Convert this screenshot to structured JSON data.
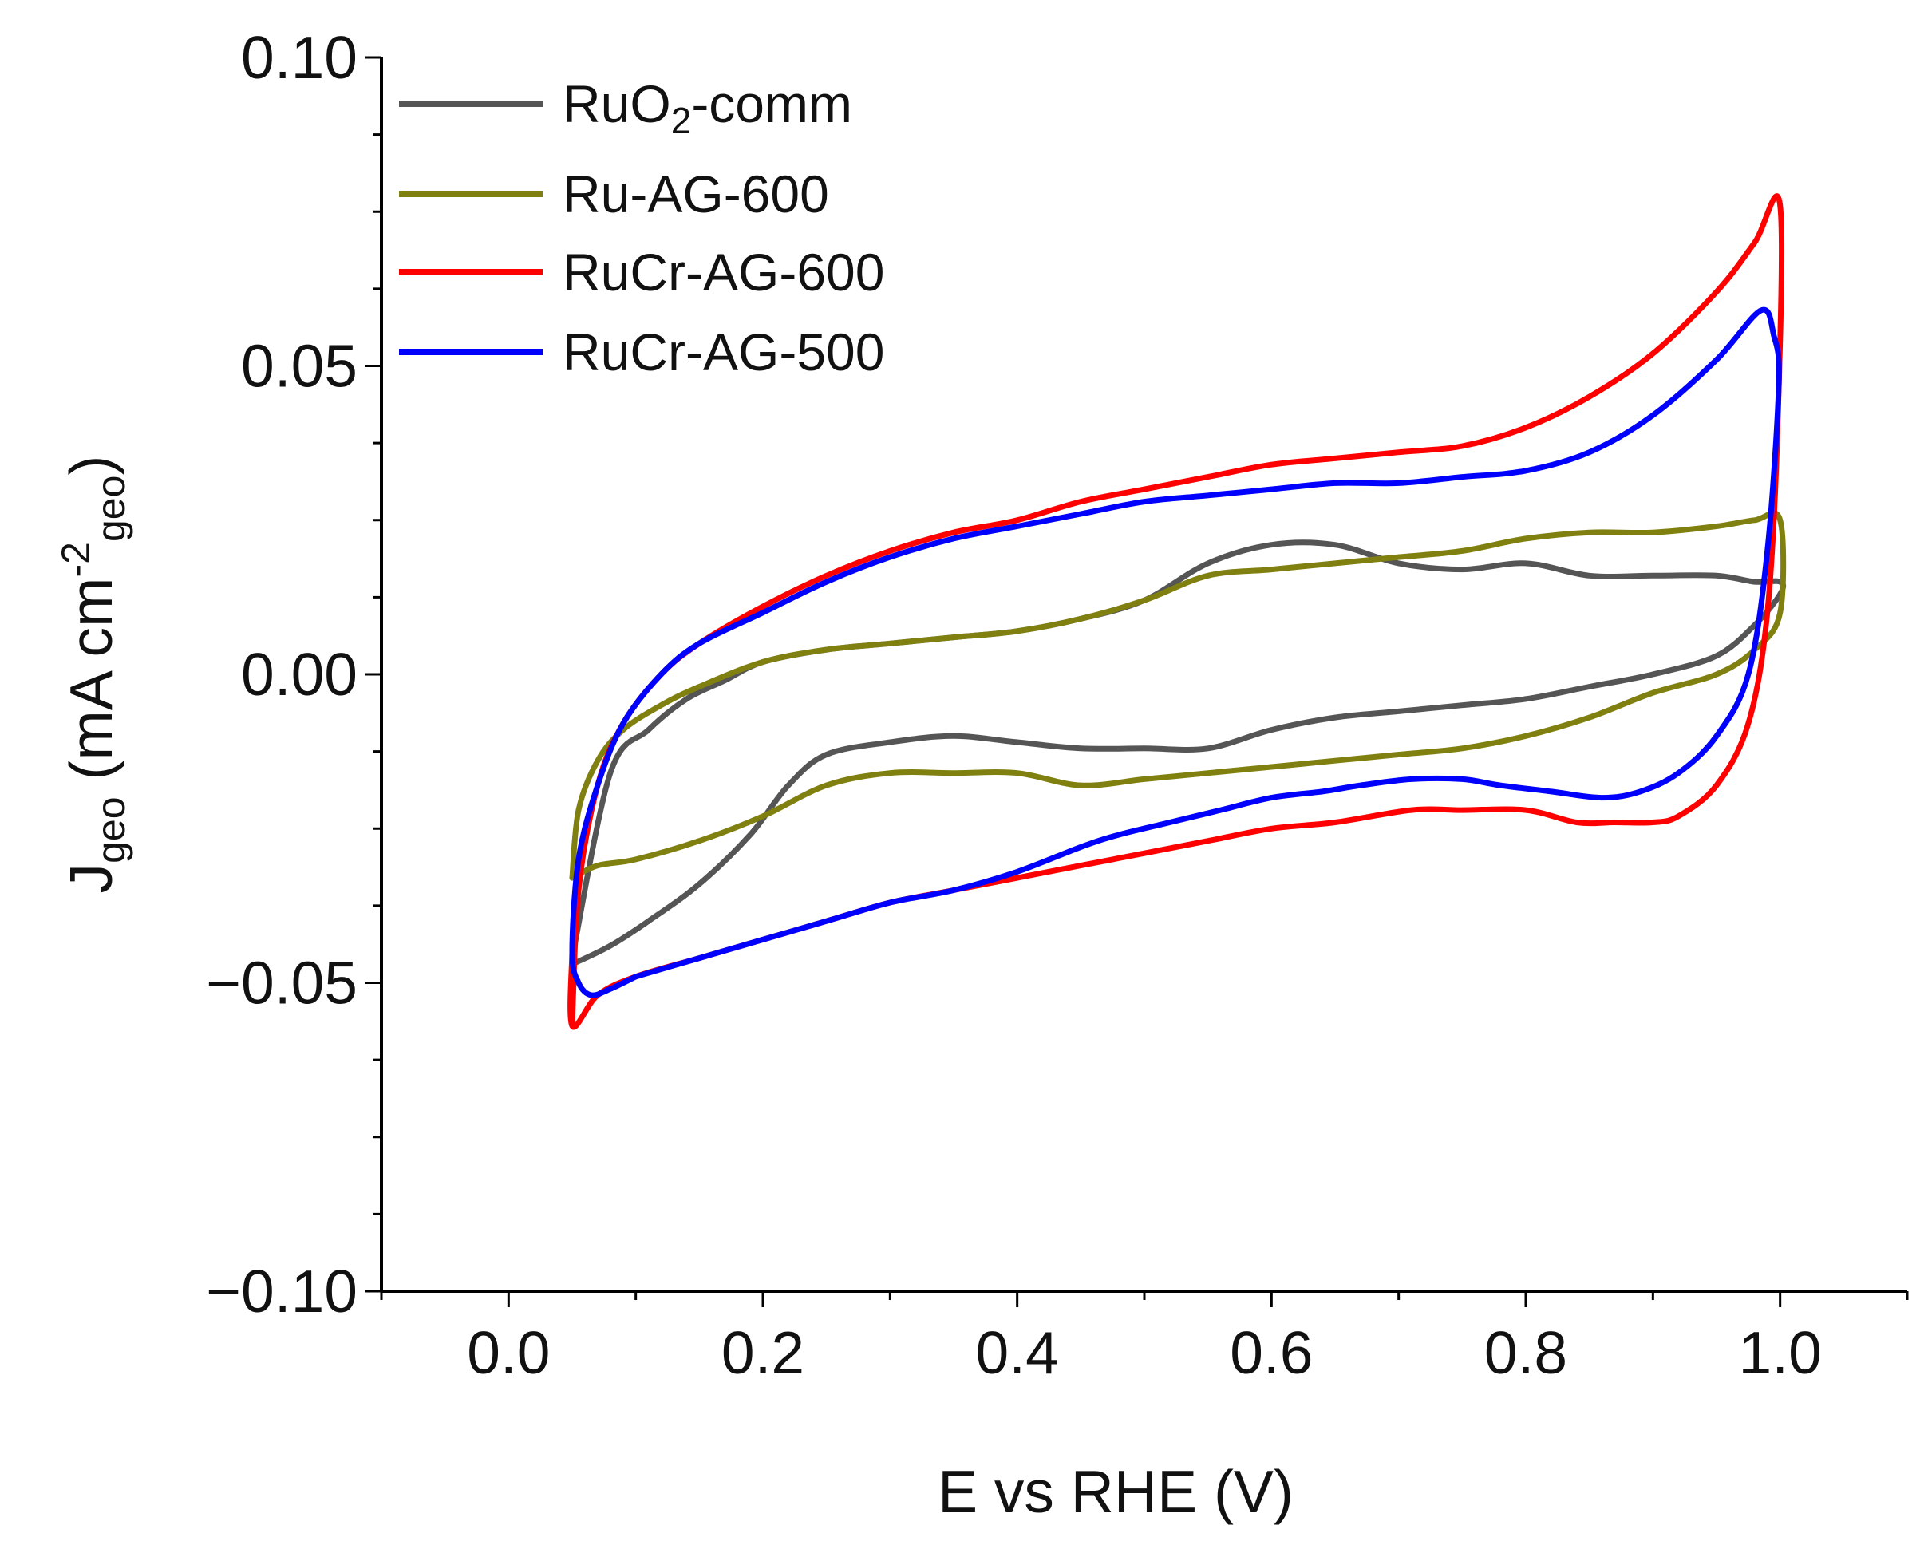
{
  "chart_data": {
    "type": "line",
    "title": "",
    "xlabel": "E vs RHE (V)",
    "ylabel": {
      "main": "J",
      "sub": "geo",
      "mid": " (mA cm",
      "sup": "-2",
      "sub2": "geo",
      "end": ")"
    },
    "xlim": [
      -0.1,
      1.1
    ],
    "ylim": [
      -0.1,
      0.1
    ],
    "xticks": [
      0.0,
      0.2,
      0.4,
      0.6,
      0.8,
      1.0
    ],
    "xtick_labels": [
      "0.0",
      "0.2",
      "0.4",
      "0.6",
      "0.8",
      "1.0"
    ],
    "yticks": [
      -0.1,
      -0.05,
      0.0,
      0.05,
      0.1
    ],
    "ytick_labels": [
      "−0.10",
      "−0.05",
      "0.00",
      "0.05",
      "0.10"
    ],
    "legend_position": "top-left",
    "series": [
      {
        "name": "RuO2-comm",
        "label_main": "RuO",
        "label_sub": "2",
        "label_rest": "-comm",
        "color": "#555555",
        "x": [
          0.05,
          0.08,
          0.11,
          0.14,
          0.17,
          0.2,
          0.25,
          0.3,
          0.35,
          0.4,
          0.45,
          0.5,
          0.55,
          0.6,
          0.65,
          0.7,
          0.75,
          0.8,
          0.85,
          0.9,
          0.95,
          0.98,
          1.0,
          1.0,
          0.98,
          0.95,
          0.9,
          0.85,
          0.8,
          0.75,
          0.7,
          0.65,
          0.6,
          0.55,
          0.5,
          0.45,
          0.4,
          0.35,
          0.3,
          0.25,
          0.22,
          0.19,
          0.15,
          0.11,
          0.08,
          0.05
        ],
        "y": [
          -0.046,
          -0.016,
          -0.009,
          -0.004,
          -0.001,
          0.002,
          0.004,
          0.005,
          0.006,
          0.007,
          0.009,
          0.012,
          0.018,
          0.021,
          0.021,
          0.018,
          0.017,
          0.018,
          0.016,
          0.016,
          0.016,
          0.015,
          0.015,
          0.013,
          0.008,
          0.003,
          0.0,
          -0.002,
          -0.004,
          -0.005,
          -0.006,
          -0.007,
          -0.009,
          -0.012,
          -0.012,
          -0.012,
          -0.011,
          -0.01,
          -0.011,
          -0.013,
          -0.018,
          -0.026,
          -0.034,
          -0.04,
          -0.044,
          -0.047
        ]
      },
      {
        "name": "Ru-AG-600",
        "label_main": "Ru-AG-600",
        "label_sub": "",
        "label_rest": "",
        "color": "#808010",
        "x": [
          0.05,
          0.055,
          0.07,
          0.09,
          0.12,
          0.15,
          0.2,
          0.25,
          0.3,
          0.35,
          0.4,
          0.45,
          0.5,
          0.55,
          0.6,
          0.65,
          0.7,
          0.75,
          0.8,
          0.85,
          0.9,
          0.95,
          0.98,
          1.0,
          1.0,
          0.98,
          0.95,
          0.9,
          0.85,
          0.8,
          0.75,
          0.7,
          0.65,
          0.6,
          0.55,
          0.5,
          0.45,
          0.4,
          0.35,
          0.3,
          0.25,
          0.2,
          0.15,
          0.1,
          0.07,
          0.05
        ],
        "y": [
          -0.033,
          -0.022,
          -0.014,
          -0.009,
          -0.005,
          -0.002,
          0.002,
          0.004,
          0.005,
          0.006,
          0.007,
          0.009,
          0.012,
          0.016,
          0.017,
          0.018,
          0.019,
          0.02,
          0.022,
          0.023,
          0.023,
          0.024,
          0.025,
          0.025,
          0.01,
          0.004,
          0.0,
          -0.003,
          -0.007,
          -0.01,
          -0.012,
          -0.013,
          -0.014,
          -0.015,
          -0.016,
          -0.017,
          -0.018,
          -0.016,
          -0.016,
          -0.016,
          -0.018,
          -0.023,
          -0.027,
          -0.03,
          -0.031,
          -0.033
        ]
      },
      {
        "name": "RuCr-AG-600",
        "label_main": "RuCr-AG-600",
        "label_sub": "",
        "label_rest": "",
        "color": "#ff0000",
        "x": [
          0.05,
          0.055,
          0.07,
          0.09,
          0.12,
          0.15,
          0.2,
          0.25,
          0.3,
          0.35,
          0.4,
          0.45,
          0.5,
          0.55,
          0.6,
          0.65,
          0.7,
          0.75,
          0.8,
          0.85,
          0.9,
          0.95,
          0.98,
          1.0,
          0.998,
          0.99,
          0.975,
          0.95,
          0.92,
          0.9,
          0.87,
          0.84,
          0.8,
          0.75,
          0.71,
          0.65,
          0.6,
          0.55,
          0.5,
          0.45,
          0.4,
          0.35,
          0.3,
          0.25,
          0.2,
          0.15,
          0.1,
          0.07,
          0.05,
          0.05
        ],
        "y": [
          -0.057,
          -0.035,
          -0.018,
          -0.008,
          0.0,
          0.005,
          0.011,
          0.016,
          0.02,
          0.023,
          0.025,
          0.028,
          0.03,
          0.032,
          0.034,
          0.035,
          0.036,
          0.037,
          0.04,
          0.045,
          0.052,
          0.062,
          0.07,
          0.076,
          0.04,
          0.01,
          -0.008,
          -0.018,
          -0.023,
          -0.024,
          -0.024,
          -0.024,
          -0.022,
          -0.022,
          -0.022,
          -0.024,
          -0.025,
          -0.027,
          -0.029,
          -0.031,
          -0.033,
          -0.035,
          -0.037,
          -0.04,
          -0.043,
          -0.046,
          -0.049,
          -0.052,
          -0.057,
          -0.045
        ]
      },
      {
        "name": "RuCr-AG-500",
        "label_main": "RuCr-AG-500",
        "label_sub": "",
        "label_rest": "",
        "color": "#0000ff",
        "x": [
          0.1,
          0.08,
          0.065,
          0.055,
          0.05,
          0.055,
          0.07,
          0.09,
          0.12,
          0.15,
          0.2,
          0.25,
          0.3,
          0.35,
          0.4,
          0.45,
          0.5,
          0.55,
          0.6,
          0.65,
          0.7,
          0.75,
          0.8,
          0.85,
          0.9,
          0.95,
          0.985,
          0.995,
          0.999,
          0.99,
          0.975,
          0.95,
          0.92,
          0.89,
          0.86,
          0.82,
          0.78,
          0.75,
          0.71,
          0.67,
          0.64,
          0.6,
          0.56,
          0.52,
          0.48,
          0.45,
          0.4,
          0.35,
          0.3,
          0.25,
          0.2,
          0.15,
          0.1
        ],
        "y": [
          -0.049,
          -0.051,
          -0.052,
          -0.05,
          -0.045,
          -0.03,
          -0.018,
          -0.008,
          0.0,
          0.005,
          0.01,
          0.015,
          0.019,
          0.022,
          0.024,
          0.026,
          0.028,
          0.029,
          0.03,
          0.031,
          0.031,
          0.032,
          0.033,
          0.036,
          0.042,
          0.051,
          0.059,
          0.055,
          0.047,
          0.02,
          0.0,
          -0.01,
          -0.016,
          -0.019,
          -0.02,
          -0.019,
          -0.018,
          -0.017,
          -0.017,
          -0.018,
          -0.019,
          -0.02,
          -0.022,
          -0.024,
          -0.026,
          -0.028,
          -0.032,
          -0.035,
          -0.037,
          -0.04,
          -0.043,
          -0.046,
          -0.049
        ]
      }
    ]
  }
}
